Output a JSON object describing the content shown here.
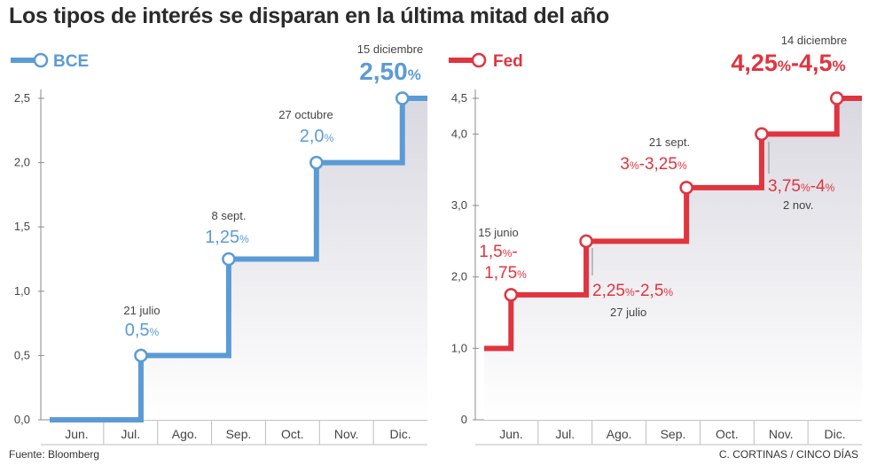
{
  "headline": "Los tipos de interés se disparan en la última mitad del año",
  "footer": {
    "source": "Fuente: Bloomberg",
    "credit": "C. CORTINAS / CINCO DÍAS"
  },
  "colors": {
    "bce": "#5b9bd5",
    "fed": "#e0343f",
    "area": "#d9d8e0",
    "text": "#3a3a3a"
  },
  "chart_data": [
    {
      "type": "line",
      "series": [
        {
          "name": "BCE",
          "color": "#5b9bd5"
        }
      ],
      "months": [
        "Jun.",
        "Jul.",
        "Ago.",
        "Sep.",
        "Oct.",
        "Nov.",
        "Dic."
      ],
      "y_ticks": [
        "0,0",
        "0,5",
        "1,0",
        "1,5",
        "2,0",
        "2,5"
      ],
      "ylim": [
        0,
        2.5
      ],
      "xlim_days": [
        0,
        211
      ],
      "steps": [
        {
          "day": 0,
          "rate": 0
        },
        {
          "day": 51,
          "rate": 0.5
        },
        {
          "day": 100,
          "rate": 1.25
        },
        {
          "day": 149,
          "rate": 2.0
        },
        {
          "day": 197,
          "rate": 2.5
        }
      ],
      "events": [
        {
          "date": "21 julio",
          "label": "0,5",
          "unit": "%",
          "rate": 0.5,
          "day": 51
        },
        {
          "date": "8 sept.",
          "label": "1,25",
          "unit": "%",
          "rate": 1.25,
          "day": 100
        },
        {
          "date": "27 octubre",
          "label": "2,0",
          "unit": "%",
          "rate": 2.0,
          "day": 149
        },
        {
          "date": "15 diciembre",
          "label": "2,50",
          "unit": "%",
          "rate": 2.5,
          "day": 197
        }
      ]
    },
    {
      "type": "line",
      "series": [
        {
          "name": "Fed",
          "color": "#e0343f"
        }
      ],
      "months": [
        "Jun.",
        "Jul.",
        "Ago.",
        "Sep.",
        "Oct.",
        "Nov.",
        "Dic."
      ],
      "y_ticks": [
        "0",
        "1,0",
        "2,0",
        "3,0",
        "4,0",
        "4,5"
      ],
      "ylim": [
        0,
        4.5
      ],
      "xlim_days": [
        0,
        211
      ],
      "steps": [
        {
          "day": 0,
          "rate": 1.0
        },
        {
          "day": 15,
          "rate": 1.75
        },
        {
          "day": 57,
          "rate": 2.5
        },
        {
          "day": 113,
          "rate": 3.25
        },
        {
          "day": 155,
          "rate": 4.0
        },
        {
          "day": 197,
          "rate": 4.5
        }
      ],
      "events": [
        {
          "date": "15 junio",
          "parts": [
            "1,5",
            "%",
            "-",
            "1,75",
            "%"
          ],
          "rate": 1.75,
          "day": 15
        },
        {
          "date": "27 julio",
          "parts": [
            "2,25",
            "%",
            "-2,5",
            "%"
          ],
          "rate": 2.5,
          "day": 57
        },
        {
          "date": "21 sept.",
          "parts": [
            "3",
            "%",
            "-3,25",
            "%"
          ],
          "rate": 3.25,
          "day": 113
        },
        {
          "date": "2 nov.",
          "parts": [
            "3,75",
            "%",
            "-4",
            "%"
          ],
          "rate": 4.0,
          "day": 155
        },
        {
          "date": "14 diciembre",
          "parts": [
            "4,25",
            "%",
            "-4,5",
            "%"
          ],
          "rate": 4.5,
          "day": 197
        }
      ]
    }
  ]
}
